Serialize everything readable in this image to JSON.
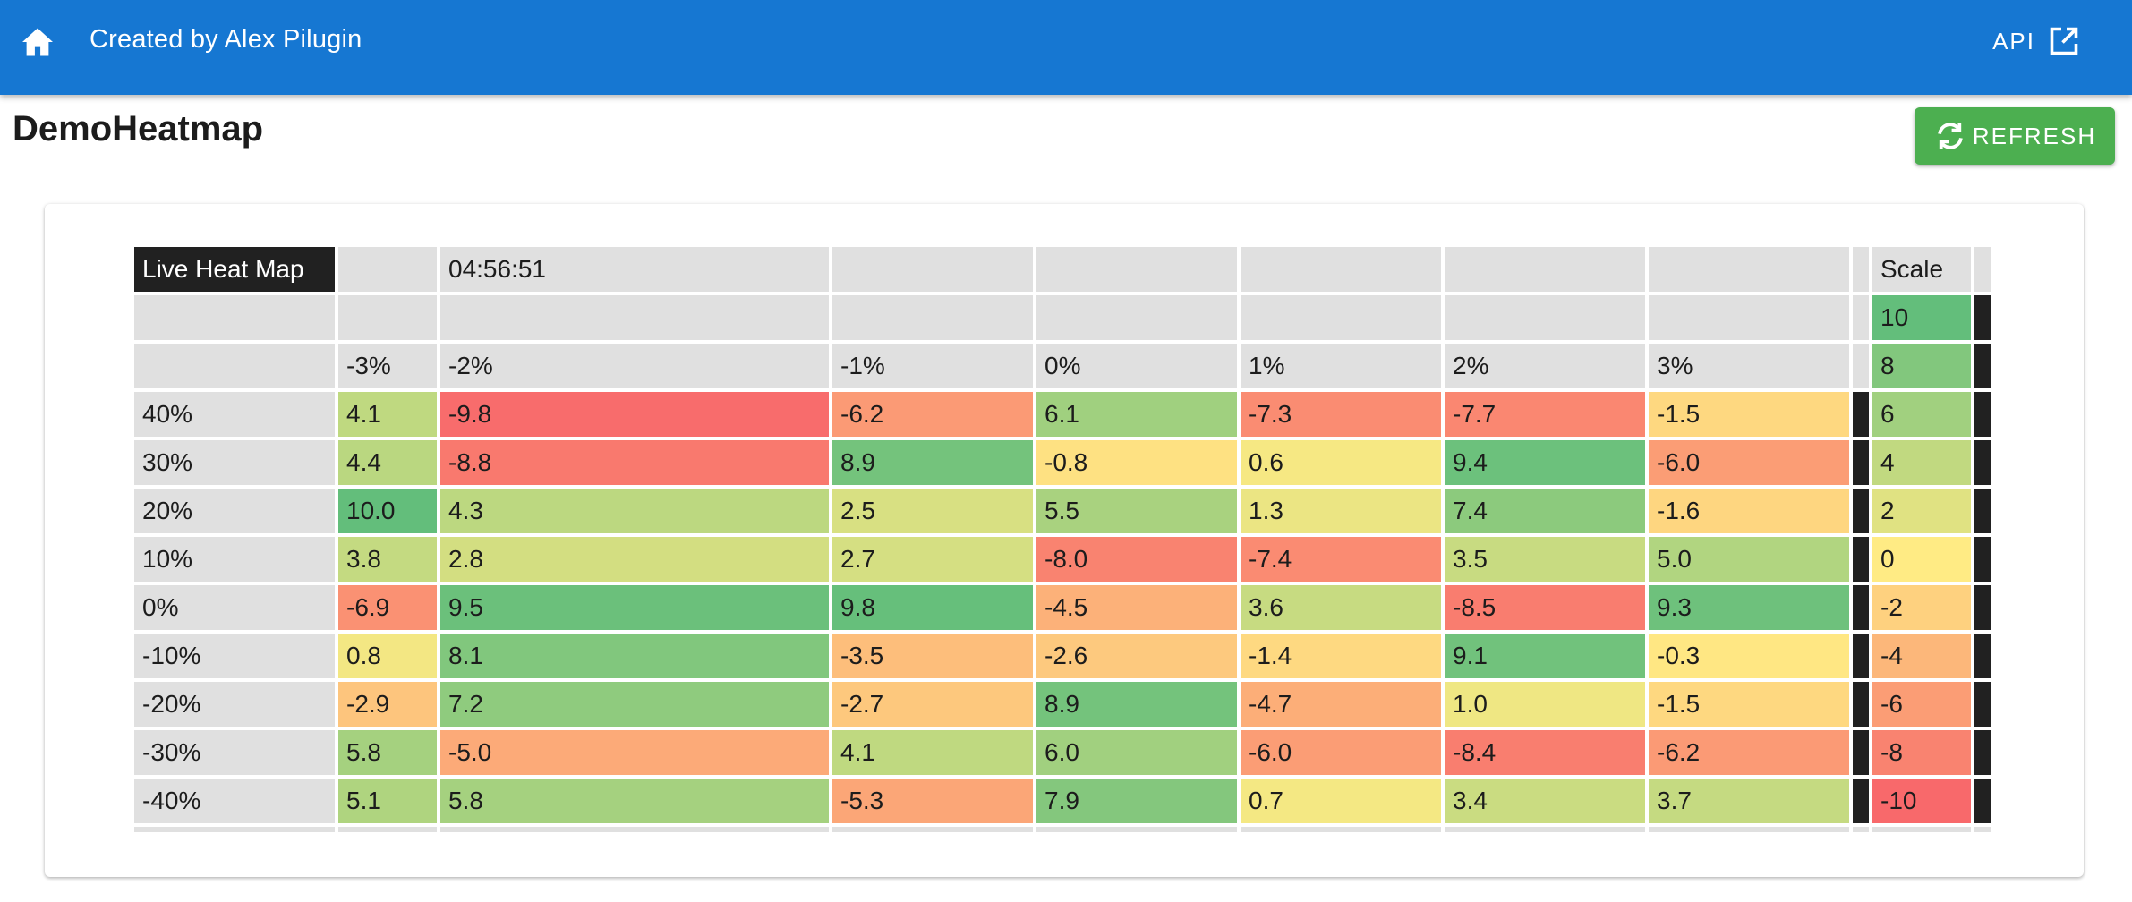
{
  "appbar": {
    "title": "Created by Alex Pilugin",
    "home_icon": "home-icon",
    "api_label": "API",
    "api_icon": "open-in-new-icon",
    "color": "#1677d2"
  },
  "page": {
    "title": "DemoHeatmap",
    "refresh_label": "REFRESH",
    "refresh_icon": "sync-icon",
    "refresh_color": "#4caf50"
  },
  "chart_data": {
    "type": "heatmap",
    "title": "Live Heat Map",
    "timestamp": "04:56:51",
    "columns": [
      "-3%",
      "-2%",
      "-1%",
      "0%",
      "1%",
      "2%",
      "3%"
    ],
    "rows": [
      "40%",
      "30%",
      "20%",
      "10%",
      "0%",
      "-10%",
      "-20%",
      "-30%",
      "-40%"
    ],
    "values": [
      [
        4.1,
        -9.8,
        -6.2,
        6.1,
        -7.3,
        -7.7,
        -1.5
      ],
      [
        4.4,
        -8.8,
        8.9,
        -0.8,
        0.6,
        9.4,
        -6.0
      ],
      [
        10.0,
        4.3,
        2.5,
        5.5,
        1.3,
        7.4,
        -1.6
      ],
      [
        3.8,
        2.8,
        2.7,
        -8.0,
        -7.4,
        3.5,
        5.0
      ],
      [
        -6.9,
        9.5,
        9.8,
        -4.5,
        3.6,
        -8.5,
        9.3
      ],
      [
        0.8,
        8.1,
        -3.5,
        -2.6,
        -1.4,
        9.1,
        -0.3
      ],
      [
        -2.9,
        7.2,
        -2.7,
        8.9,
        -4.7,
        1.0,
        -1.5
      ],
      [
        5.8,
        -5.0,
        4.1,
        6.0,
        -6.0,
        -8.4,
        -6.2
      ],
      [
        5.1,
        5.8,
        -5.3,
        7.9,
        0.7,
        3.4,
        3.7
      ]
    ],
    "scale_label": "Scale",
    "scale": [
      10,
      8,
      6,
      4,
      2,
      0,
      -2,
      -4,
      -6,
      -8,
      -10
    ],
    "color_range": [
      -10,
      10
    ],
    "colors": {
      "min": "#f8696b",
      "mid": "#ffeb84",
      "max": "#63be7b"
    }
  }
}
